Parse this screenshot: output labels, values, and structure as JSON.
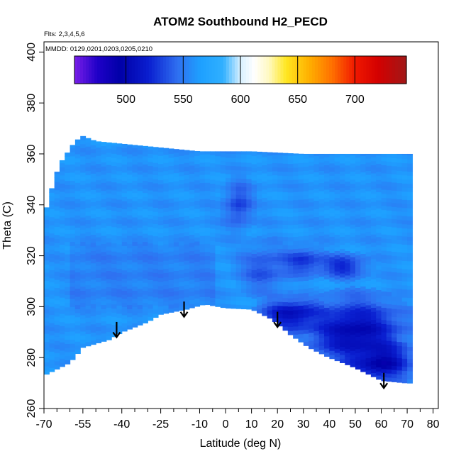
{
  "chart_data": {
    "type": "heatmap",
    "title": "ATOM2 Southbound H2_PECD",
    "notes": {
      "flights": "Flts: 2,3,4,5,6",
      "dates": "MMDD: 0129,0201,0203,0205,0210"
    },
    "xlabel": "Latitude (deg N)",
    "ylabel": "Theta (C)",
    "xlim": [
      -70,
      82
    ],
    "ylim": [
      260,
      404
    ],
    "x_ticks": [
      -70,
      -55,
      -40,
      -25,
      -10,
      0,
      10,
      20,
      30,
      40,
      50,
      60,
      70,
      80
    ],
    "x_minor_ticks": [
      -65,
      -60,
      -50,
      -45,
      -35,
      -30,
      -20,
      -15,
      -5,
      5,
      15,
      25,
      35,
      45,
      55,
      65,
      75
    ],
    "y_ticks": [
      260,
      280,
      300,
      320,
      340,
      360,
      380,
      400
    ],
    "colorbar": {
      "range": [
        455,
        745
      ],
      "ticks": [
        500,
        550,
        600,
        650,
        700
      ],
      "stops": [
        {
          "v": 455,
          "c": "#7a1fe8"
        },
        {
          "v": 475,
          "c": "#1f00c8"
        },
        {
          "v": 495,
          "c": "#0000a8"
        },
        {
          "v": 520,
          "c": "#0a1fd0"
        },
        {
          "v": 545,
          "c": "#2f6ff0"
        },
        {
          "v": 565,
          "c": "#1ea0ff"
        },
        {
          "v": 585,
          "c": "#30b0ff"
        },
        {
          "v": 600,
          "c": "#d8f0ff"
        },
        {
          "v": 612,
          "c": "#ffffff"
        },
        {
          "v": 625,
          "c": "#fff8c0"
        },
        {
          "v": 640,
          "c": "#ffe620"
        },
        {
          "v": 660,
          "c": "#ffb000"
        },
        {
          "v": 680,
          "c": "#ff7000"
        },
        {
          "v": 700,
          "c": "#f01800"
        },
        {
          "v": 720,
          "c": "#d40000"
        },
        {
          "v": 745,
          "c": "#a01818"
        }
      ]
    },
    "coverage_upper": [
      [
        -70,
        335
      ],
      [
        -68,
        343
      ],
      [
        -66,
        350
      ],
      [
        -64,
        356
      ],
      [
        -62,
        359
      ],
      [
        -60,
        362
      ],
      [
        -58,
        365
      ],
      [
        -55,
        367
      ],
      [
        -50,
        365
      ],
      [
        -30,
        363
      ],
      [
        -10,
        361
      ],
      [
        10,
        361
      ],
      [
        30,
        360
      ],
      [
        50,
        360
      ],
      [
        60,
        360
      ],
      [
        70,
        360
      ]
    ],
    "coverage_lower": [
      [
        -70,
        273
      ],
      [
        -68,
        274
      ],
      [
        -60,
        278
      ],
      [
        -55,
        284
      ],
      [
        -45,
        287
      ],
      [
        -40,
        290
      ],
      [
        -35,
        292
      ],
      [
        -30,
        294
      ],
      [
        -25,
        297
      ],
      [
        -15,
        299
      ],
      [
        -8,
        301
      ],
      [
        0,
        299.5
      ],
      [
        10,
        299
      ],
      [
        18,
        295
      ],
      [
        25,
        289
      ],
      [
        32,
        284
      ],
      [
        40,
        280
      ],
      [
        50,
        276
      ],
      [
        60,
        271
      ],
      [
        70,
        270
      ]
    ],
    "regions": [
      {
        "shape": "background",
        "value": 560
      },
      {
        "shape": "band",
        "x_range": [
          -60,
          -5
        ],
        "theta_range": [
          300,
          325
        ],
        "value": 552
      },
      {
        "shape": "blob",
        "center": [
          5,
          340
        ],
        "radius": [
          6,
          10
        ],
        "value": 530
      },
      {
        "shape": "blob",
        "center": [
          15,
          315
        ],
        "radius": [
          10,
          10
        ],
        "value": 535
      },
      {
        "shape": "blob",
        "center": [
          30,
          318
        ],
        "radius": [
          9,
          6
        ],
        "value": 525
      },
      {
        "shape": "blob",
        "center": [
          45,
          316
        ],
        "radius": [
          10,
          5
        ],
        "value": 520
      },
      {
        "shape": "blob",
        "center": [
          25,
          297
        ],
        "radius": [
          12,
          7
        ],
        "value": 505
      },
      {
        "shape": "blob",
        "center": [
          50,
          290
        ],
        "radius": [
          20,
          14
        ],
        "value": 500
      },
      {
        "shape": "blob",
        "center": [
          60,
          278
        ],
        "radius": [
          12,
          8
        ],
        "value": 495
      }
    ],
    "markers": [
      {
        "type": "down-arrow",
        "x": -42,
        "theta": 294
      },
      {
        "type": "down-arrow",
        "x": -16,
        "theta": 302
      },
      {
        "type": "down-arrow",
        "x": 20,
        "theta": 298
      },
      {
        "type": "down-arrow",
        "x": 61,
        "theta": 274
      }
    ],
    "grid": false,
    "legend": "colorbar top"
  }
}
